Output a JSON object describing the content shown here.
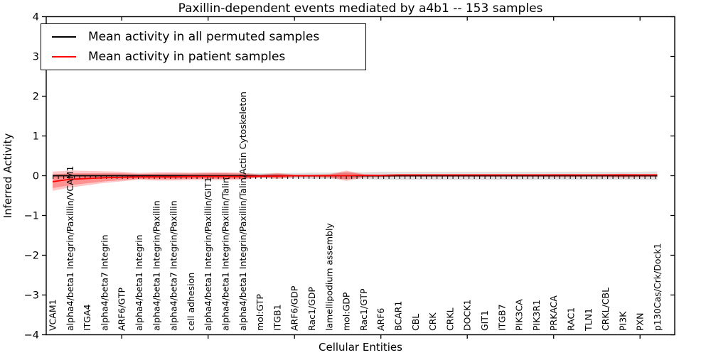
{
  "title": "Paxillin-dependent events mediated by a4b1 -- 153 samples",
  "legend": {
    "items": [
      {
        "label": "Mean activity in all permuted samples",
        "color": "#000000"
      },
      {
        "label": "Mean activity in patient samples",
        "color": "#ff0000"
      }
    ]
  },
  "chart_data": {
    "type": "line",
    "title": "Paxillin-dependent events mediated by a4b1 -- 153 samples",
    "xlabel": "Cellular Entities",
    "ylabel": "Inferred Activity",
    "ylim": [
      -4,
      4
    ],
    "ytick_labels": [
      "4",
      "3",
      "2",
      "1",
      "0",
      "−1",
      "−2",
      "−3",
      "−4"
    ],
    "ytick_values": [
      4,
      3,
      2,
      1,
      0,
      -1,
      -2,
      -3,
      -4
    ],
    "grid": false,
    "legend_position": "upper left",
    "categories": [
      "VCAM1",
      "alpha4/beta1 Integrin/Paxillin/VCAM1",
      "ITGA4",
      "alpha4/beta7 Integrin",
      "ARF6/GTP",
      "alpha4/beta1 Integrin",
      "alpha4/beta1 Integrin/Paxillin",
      "alpha4/beta7 Integrin/Paxillin",
      "cell adhesion",
      "alpha4/beta1 Integrin/Paxillin/GIT1",
      "alpha4/beta1 Integrin/Paxillin/Talin",
      "alpha4/beta1 Integrin/Paxillin/Talin/Actin Cytoskeleton",
      "mol:GTP",
      "ITGB1",
      "ARF6/GDP",
      "Rac1/GDP",
      "lamellipodium assembly",
      "mol:GDP",
      "Rac1/GTP",
      "ARF6",
      "BCAR1",
      "CBL",
      "CRK",
      "CRKL",
      "DOCK1",
      "GIT1",
      "ITGB7",
      "PIK3CA",
      "PIK3R1",
      "PRKACA",
      "RAC1",
      "TLN1",
      "CRKL/CBL",
      "PI3K",
      "PXN",
      "p130Cas/Crk/Dock1"
    ],
    "major_tick_indices": [
      4,
      9,
      14,
      19,
      24,
      29,
      34
    ],
    "series": [
      {
        "name": "Mean activity in all permuted samples",
        "color": "#000000",
        "values": [
          0,
          0,
          0,
          0,
          0,
          0,
          0,
          0,
          0,
          0,
          0,
          0,
          0,
          0,
          0,
          0,
          0,
          0,
          0,
          0,
          0,
          0,
          0,
          0,
          0,
          0,
          0,
          0,
          0,
          0,
          0,
          0,
          0,
          0,
          0,
          0
        ]
      },
      {
        "name": "Mean activity in patient samples",
        "color": "#ff0000",
        "values": [
          -0.15,
          -0.09,
          -0.07,
          -0.05,
          -0.04,
          -0.03,
          -0.03,
          -0.03,
          -0.02,
          -0.02,
          -0.02,
          -0.02,
          -0.01,
          -0.01,
          0,
          0,
          0,
          0,
          0.01,
          0.01,
          0.02,
          0.02,
          0.02,
          0.02,
          0.02,
          0.02,
          0.02,
          0.02,
          0.02,
          0.02,
          0.02,
          0.02,
          0.02,
          0.02,
          0.02,
          0.02
        ]
      }
    ],
    "bands": [
      {
        "name": "permuted-samples-range",
        "color": "#999999",
        "opacity": 0.3,
        "upper": [
          0.05,
          0.05,
          0.05,
          0.05,
          0.05,
          0.05,
          0.05,
          0.06,
          0.06,
          0.06,
          0.06,
          0.06,
          0.06,
          0.07,
          0.07,
          0.08,
          0.08,
          0.09,
          0.09,
          0.1,
          0.1,
          0.1,
          0.1,
          0.1,
          0.1,
          0.1,
          0.1,
          0.1,
          0.1,
          0.1,
          0.1,
          0.1,
          0.1,
          0.1,
          0.1,
          0.11
        ],
        "lower": [
          -0.05,
          -0.05,
          -0.05,
          -0.05,
          -0.05,
          -0.05,
          -0.05,
          -0.06,
          -0.06,
          -0.06,
          -0.06,
          -0.06,
          -0.06,
          -0.07,
          -0.07,
          -0.08,
          -0.08,
          -0.09,
          -0.09,
          -0.1,
          -0.1,
          -0.1,
          -0.1,
          -0.1,
          -0.1,
          -0.1,
          -0.1,
          -0.1,
          -0.1,
          -0.1,
          -0.1,
          -0.1,
          -0.1,
          -0.1,
          -0.1,
          -0.11
        ]
      },
      {
        "name": "patient-samples-range-outer",
        "color": "#ff0000",
        "opacity": 0.22,
        "upper": [
          0.1,
          0.13,
          0.12,
          0.11,
          0.1,
          0.07,
          0.09,
          0.09,
          0.08,
          0.09,
          0.09,
          0.08,
          0.03,
          0.07,
          0.03,
          0.03,
          0.04,
          0.13,
          0.04,
          0.03,
          0.03,
          0.03,
          0.03,
          0.03,
          0.03,
          0.03,
          0.03,
          0.03,
          0.03,
          0.04,
          0.04,
          0.03,
          0.04,
          0.05,
          0.04,
          0.04
        ],
        "lower": [
          -0.38,
          -0.3,
          -0.24,
          -0.18,
          -0.14,
          -0.1,
          -0.12,
          -0.12,
          -0.11,
          -0.11,
          -0.11,
          -0.1,
          -0.05,
          -0.08,
          -0.04,
          -0.04,
          -0.05,
          -0.13,
          -0.05,
          -0.04,
          -0.03,
          -0.03,
          -0.03,
          -0.03,
          -0.03,
          -0.03,
          -0.03,
          -0.03,
          -0.03,
          -0.04,
          -0.04,
          -0.03,
          -0.04,
          -0.05,
          -0.04,
          -0.03
        ]
      },
      {
        "name": "patient-samples-range-inner",
        "color": "#ff0000",
        "opacity": 0.27,
        "upper": [
          0.03,
          0.06,
          0.06,
          0.06,
          0.06,
          0.04,
          0.05,
          0.05,
          0.05,
          0.06,
          0.06,
          0.05,
          0.02,
          0.05,
          0.02,
          0.02,
          0.03,
          0.09,
          0.03,
          0.02,
          0.03,
          0.03,
          0.03,
          0.03,
          0.03,
          0.03,
          0.03,
          0.03,
          0.03,
          0.03,
          0.03,
          0.03,
          0.03,
          0.04,
          0.03,
          0.03
        ],
        "lower": [
          -0.31,
          -0.24,
          -0.19,
          -0.14,
          -0.11,
          -0.08,
          -0.09,
          -0.09,
          -0.08,
          -0.08,
          -0.08,
          -0.08,
          -0.04,
          -0.06,
          -0.03,
          -0.03,
          -0.04,
          -0.09,
          -0.03,
          -0.03,
          -0.02,
          -0.02,
          -0.02,
          -0.02,
          -0.02,
          -0.02,
          -0.02,
          -0.02,
          -0.02,
          -0.02,
          -0.02,
          -0.02,
          -0.02,
          -0.03,
          -0.02,
          -0.02
        ]
      }
    ]
  }
}
